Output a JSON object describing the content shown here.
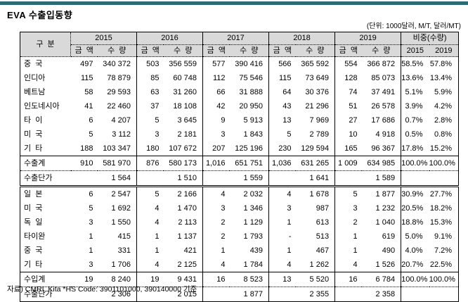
{
  "page": {
    "title": "EVA 수출입동향",
    "units_note": "(단위: 1000달러, M/T, 달러/MT)",
    "source_note": "자료) CMRI, Kita *HS Code: 3901101000, 390140000 기준"
  },
  "colors": {
    "top_bar": "#2e6977",
    "header_bg": "#d9d9d9",
    "border": "#000000"
  },
  "table": {
    "header": {
      "category": "구  분",
      "years": [
        "2015",
        "2016",
        "2017",
        "2018",
        "2019"
      ],
      "amount_label": "금  액",
      "quantity_label": "수  량",
      "share_label": "비중(수량)",
      "share_years": [
        "2015",
        "2019"
      ]
    },
    "rows": [
      {
        "kind": "country",
        "label": "중  국",
        "c": [
          "497",
          "340 372",
          "503",
          "356 559",
          "577",
          "390 416",
          "566",
          "365 592",
          "554",
          "366 872",
          "58.5%",
          "57.8%"
        ]
      },
      {
        "kind": "country",
        "label": "인디아",
        "c": [
          "115",
          "78 879",
          "85",
          "60 748",
          "112",
          "75 546",
          "115",
          "73 649",
          "128",
          "85 073",
          "13.6%",
          "13.4%"
        ]
      },
      {
        "kind": "country",
        "label": "베트남",
        "c": [
          "58",
          "29 593",
          "63",
          "31 260",
          "66",
          "31 888",
          "64",
          "30 376",
          "74",
          "37 491",
          "5.1%",
          "5.9%"
        ]
      },
      {
        "kind": "country",
        "label": "인도네시아",
        "c": [
          "41",
          "22 460",
          "37",
          "18 108",
          "42",
          "20 950",
          "43",
          "21 296",
          "51",
          "26 578",
          "3.9%",
          "4.2%"
        ]
      },
      {
        "kind": "country",
        "label": "타  이",
        "c": [
          "6",
          "4 207",
          "5",
          "3 645",
          "9",
          "5 913",
          "13",
          "7 969",
          "27",
          "17 686",
          "0.7%",
          "2.8%"
        ]
      },
      {
        "kind": "country",
        "label": "미  국",
        "c": [
          "5",
          "3 112",
          "3",
          "2 181",
          "3",
          "1 843",
          "5",
          "2 789",
          "10",
          "4 918",
          "0.5%",
          "0.8%"
        ]
      },
      {
        "kind": "country",
        "label": "기  타",
        "c": [
          "188",
          "103 347",
          "180",
          "107 672",
          "207",
          "125 196",
          "230",
          "129 594",
          "165",
          "96 367",
          "17.8%",
          "15.2%"
        ]
      },
      {
        "kind": "total",
        "label": "수출계",
        "c": [
          "910",
          "581 970",
          "876",
          "580 173",
          "1,016",
          "651 751",
          "1,036",
          "631 265",
          "1 009",
          "634 985",
          "100.0%",
          "100.0%"
        ]
      },
      {
        "kind": "unit",
        "label": "수출단가",
        "c": [
          "",
          "1 564",
          "",
          "1 510",
          "",
          "1 559",
          "",
          "1 641",
          "",
          "1 589",
          "",
          ""
        ]
      },
      {
        "kind": "country",
        "label": "일  본",
        "c": [
          "6",
          "2 547",
          "5",
          "2 166",
          "4",
          "2 032",
          "4",
          "1 678",
          "5",
          "1 877",
          "30.9%",
          "27.7%"
        ]
      },
      {
        "kind": "country",
        "label": "미  국",
        "c": [
          "5",
          "1 692",
          "4",
          "1 470",
          "3",
          "1 346",
          "3",
          "987",
          "3",
          "1 232",
          "20.5%",
          "18.2%"
        ]
      },
      {
        "kind": "country",
        "label": "독  일",
        "c": [
          "3",
          "1 550",
          "4",
          "2 113",
          "2",
          "1 129",
          "1",
          "613",
          "2",
          "1 040",
          "18.8%",
          "15.3%"
        ]
      },
      {
        "kind": "country",
        "label": "타이완",
        "c": [
          "1",
          "415",
          "1",
          "1 137",
          "2",
          "1 793",
          "-",
          "513",
          "1",
          "619",
          "5.0%",
          "9.1%"
        ]
      },
      {
        "kind": "country",
        "label": "중  국",
        "c": [
          "1",
          "331",
          "1",
          "421",
          "1",
          "439",
          "1",
          "467",
          "1",
          "490",
          "4.0%",
          "7.2%"
        ]
      },
      {
        "kind": "country",
        "label": "기  타",
        "c": [
          "3",
          "1 706",
          "4",
          "2 125",
          "4",
          "1 784",
          "4",
          "1 262",
          "4",
          "1 526",
          "20.7%",
          "22.5%"
        ]
      },
      {
        "kind": "total",
        "label": "수입계",
        "c": [
          "19",
          "8 240",
          "19",
          "9 431",
          "16",
          "8 523",
          "13",
          "5 520",
          "16",
          "6 784",
          "100.0%",
          "100.0%"
        ]
      },
      {
        "kind": "unit",
        "label": "수출단가",
        "c": [
          "",
          "2 306",
          "",
          "2 015",
          "",
          "1 877",
          "",
          "2 355",
          "",
          "2 358",
          "",
          ""
        ]
      }
    ]
  }
}
